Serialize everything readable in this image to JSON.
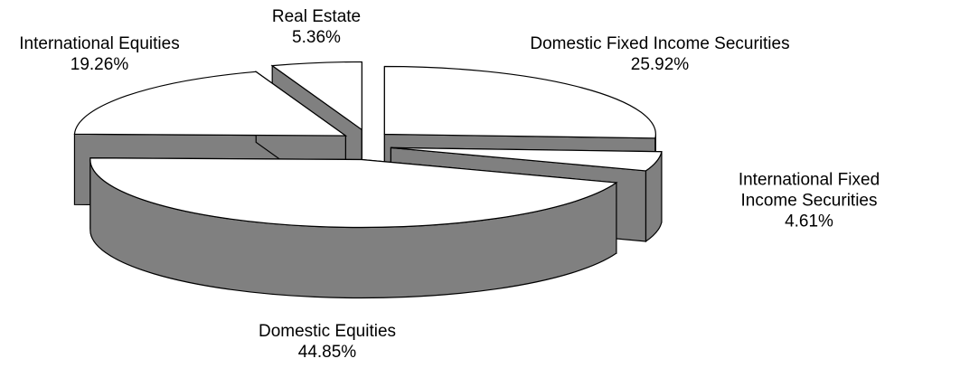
{
  "chart_data": {
    "type": "pie",
    "categories": [
      "Domestic Fixed Income Securities",
      "International Fixed Income Securities",
      "Domestic Equities",
      "International Equities",
      "Real Estate"
    ],
    "values": [
      25.92,
      4.61,
      44.85,
      19.26,
      5.36
    ],
    "value_labels": [
      "25.92%",
      "4.61%",
      "44.85%",
      "19.26%",
      "5.36%"
    ],
    "color": "#ffffff",
    "side_color": "#808080"
  }
}
